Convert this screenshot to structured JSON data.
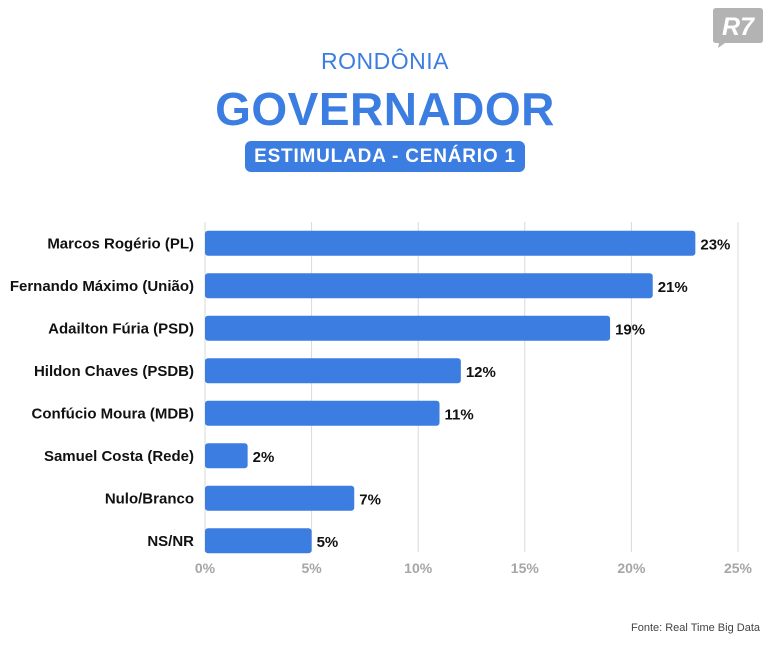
{
  "logo_text": "R7",
  "subtitle": "RONDÔNIA",
  "title": "GOVERNADOR",
  "badge": "ESTIMULADA - CENÁRIO 1",
  "source": "Fonte: Real Time Big Data",
  "colors": {
    "bar": "#3b7de0",
    "grid": "#d9d9d9",
    "tick": "#a6a6a6",
    "label": "#111111",
    "logo": "#b3b3b3"
  },
  "chart_data": {
    "type": "bar",
    "orientation": "horizontal",
    "categories": [
      "Marcos Rogério (PL)",
      "Fernando Máximo (União)",
      "Adailton Fúria (PSD)",
      "Hildon Chaves (PSDB)",
      "Confúcio Moura (MDB)",
      "Samuel Costa (Rede)",
      "Nulo/Branco",
      "NS/NR"
    ],
    "values": [
      23,
      21,
      19,
      12,
      11,
      2,
      7,
      5
    ],
    "value_labels": [
      "23%",
      "21%",
      "19%",
      "12%",
      "11%",
      "2%",
      "7%",
      "5%"
    ],
    "xlim": [
      0,
      25
    ],
    "xticks": [
      0,
      5,
      10,
      15,
      20,
      25
    ],
    "xtick_labels": [
      "0%",
      "5%",
      "10%",
      "15%",
      "20%",
      "25%"
    ],
    "grid": true,
    "legend": "none"
  }
}
